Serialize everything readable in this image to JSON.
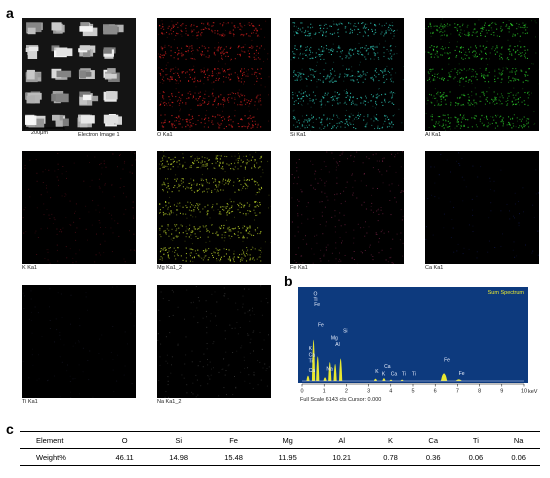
{
  "panel_labels": {
    "a": "a",
    "b": "b",
    "c": "c"
  },
  "maps": [
    {
      "caption": "Electron Image 1",
      "color": "#d0d0d0",
      "pattern": "sem"
    },
    {
      "caption": "O Ka1",
      "color": "#e82222",
      "pattern": "strong"
    },
    {
      "caption": "Si Ka1",
      "color": "#33d6c4",
      "pattern": "strong"
    },
    {
      "caption": "Al Ka1",
      "color": "#2edc2e",
      "pattern": "strong"
    },
    {
      "caption": "K Ka1",
      "color": "#c8203a",
      "pattern": "sparse"
    },
    {
      "caption": "Mg Ka1_2",
      "color": "#c6e02e",
      "pattern": "strong"
    },
    {
      "caption": "Fe Ka1",
      "color": "#d84080",
      "pattern": "diffuse"
    },
    {
      "caption": "Ca Ka1",
      "color": "#3040d0",
      "pattern": "faint"
    },
    {
      "caption": "Ti Ka1",
      "color": "#3a3a60",
      "pattern": "faint"
    },
    {
      "caption": "Na Ka1_2",
      "color": "#8a8a8a",
      "pattern": "sparse"
    }
  ],
  "scale_bar_label": "200μm",
  "spectrum": {
    "title": "Sum Spectrum",
    "footer": "Full Scale 6143 cts Cursor: 0.000",
    "unit": "keV",
    "background": "#0d3a7e",
    "peak_color": "#e8e830"
  },
  "chart_data": {
    "type": "line",
    "xlim": [
      0,
      10
    ],
    "xticks": [
      0,
      1,
      2,
      3,
      4,
      5,
      6,
      7,
      8,
      9,
      10
    ],
    "peaks": [
      {
        "x": 0.27,
        "height": 0.12
      },
      {
        "x": 0.52,
        "height": 0.92
      },
      {
        "x": 0.71,
        "height": 0.55
      },
      {
        "x": 1.04,
        "height": 0.08
      },
      {
        "x": 1.25,
        "height": 0.42
      },
      {
        "x": 1.49,
        "height": 0.38
      },
      {
        "x": 1.74,
        "height": 0.5
      },
      {
        "x": 3.31,
        "height": 0.05
      },
      {
        "x": 3.69,
        "height": 0.06
      },
      {
        "x": 4.01,
        "height": 0.03
      },
      {
        "x": 4.51,
        "height": 0.03
      },
      {
        "x": 6.4,
        "height": 0.17
      },
      {
        "x": 7.06,
        "height": 0.04
      }
    ],
    "peak_labels": [
      {
        "text": "O",
        "x": 0.52,
        "level": 0.97
      },
      {
        "text": "Ti",
        "x": 0.52,
        "level": 0.91
      },
      {
        "text": "Fe",
        "x": 0.55,
        "level": 0.85
      },
      {
        "text": "Fe",
        "x": 0.72,
        "level": 0.62
      },
      {
        "text": "Si",
        "x": 1.85,
        "level": 0.55
      },
      {
        "text": "Mg",
        "x": 1.3,
        "level": 0.47
      },
      {
        "text": "Al",
        "x": 1.5,
        "level": 0.4
      },
      {
        "text": "K",
        "x": 0.3,
        "level": 0.35
      },
      {
        "text": "Ca",
        "x": 0.3,
        "level": 0.28
      },
      {
        "text": "Ti",
        "x": 0.3,
        "level": 0.21
      },
      {
        "text": "Na",
        "x": 1.1,
        "level": 0.12
      },
      {
        "text": "Ca",
        "x": 0.3,
        "level": 0.1
      },
      {
        "text": "Ca",
        "x": 3.7,
        "level": 0.15
      },
      {
        "text": "K",
        "x": 3.3,
        "level": 0.09
      },
      {
        "text": "K",
        "x": 3.6,
        "level": 0.06
      },
      {
        "text": "Ca",
        "x": 4.0,
        "level": 0.06
      },
      {
        "text": "Ti",
        "x": 4.5,
        "level": 0.06
      },
      {
        "text": "Ti",
        "x": 4.95,
        "level": 0.06
      },
      {
        "text": "Fe",
        "x": 6.4,
        "level": 0.22
      },
      {
        "text": "Fe",
        "x": 7.06,
        "level": 0.07
      }
    ]
  },
  "table": {
    "header": [
      "Element",
      "O",
      "Si",
      "Fe",
      "Mg",
      "Al",
      "K",
      "Ca",
      "Ti",
      "Na"
    ],
    "values": [
      "Weight%",
      "46.11",
      "14.98",
      "15.48",
      "11.95",
      "10.21",
      "0.78",
      "0.36",
      "0.06",
      "0.06"
    ]
  }
}
